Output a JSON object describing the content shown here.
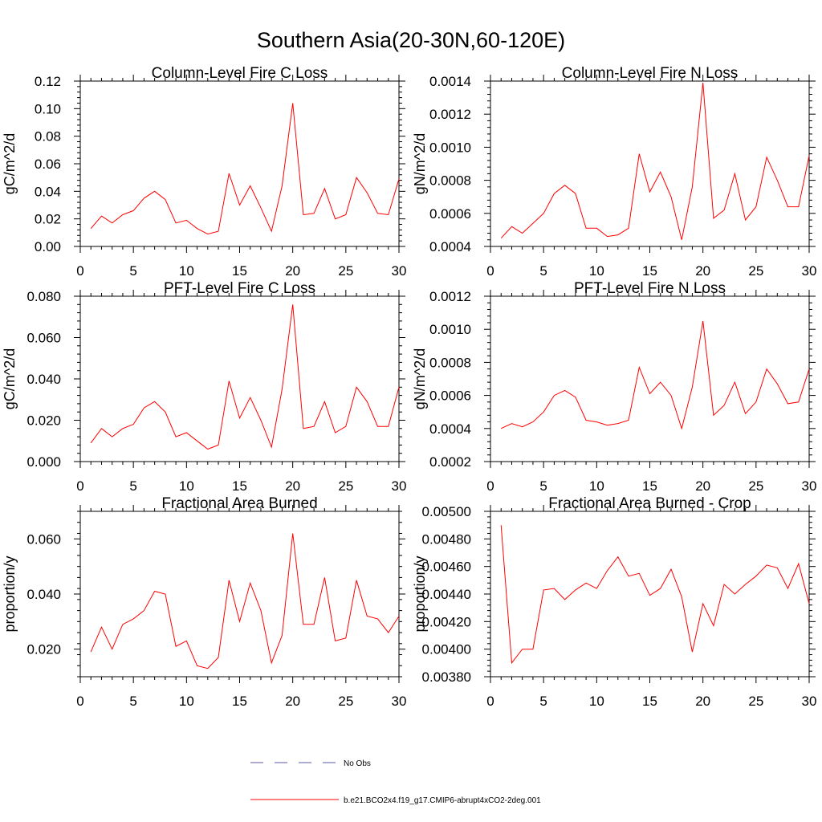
{
  "figure": {
    "title": "Southern Asia(20-30N,60-120E)",
    "colors": {
      "model": "#ff0000",
      "obs": "#5a5aa8",
      "axis": "#000000"
    }
  },
  "legend": {
    "entries": [
      {
        "label": "No Obs",
        "style": "dashed",
        "color": "#5a5aa8"
      },
      {
        "label": "b.e21.BCO2x4.f19_g17.CMIP6-abrupt4xCO2-2deg.001",
        "style": "solid",
        "color": "#ff0000"
      }
    ]
  },
  "chart_data": [
    {
      "type": "line",
      "title": "Column-Level Fire C Loss",
      "ylabel": "gC/m^2/d",
      "xlim": [
        0,
        30
      ],
      "ylim": [
        0.0,
        0.12
      ],
      "xticks": [
        0,
        5,
        10,
        15,
        20,
        25,
        30
      ],
      "yticks": [
        0.0,
        0.02,
        0.04,
        0.06,
        0.08,
        0.1,
        0.12
      ],
      "ytick_labels": [
        "0.00",
        "0.02",
        "0.04",
        "0.06",
        "0.08",
        "0.10",
        "0.12"
      ],
      "series": [
        {
          "name": "b.e21.BCO2x4.f19_g17.CMIP6-abrupt4xCO2-2deg.001",
          "x": [
            1,
            2,
            3,
            4,
            5,
            6,
            7,
            8,
            9,
            10,
            11,
            12,
            13,
            14,
            15,
            16,
            17,
            18,
            19,
            20,
            21,
            22,
            23,
            24,
            25,
            26,
            27,
            28,
            29,
            30
          ],
          "values": [
            0.013,
            0.022,
            0.017,
            0.023,
            0.026,
            0.035,
            0.04,
            0.034,
            0.017,
            0.019,
            0.013,
            0.009,
            0.011,
            0.053,
            0.03,
            0.044,
            0.028,
            0.011,
            0.044,
            0.104,
            0.023,
            0.024,
            0.042,
            0.02,
            0.023,
            0.05,
            0.039,
            0.024,
            0.023,
            0.049
          ]
        }
      ]
    },
    {
      "type": "line",
      "title": "Column-Level Fire N Loss",
      "ylabel": "gN/m^2/d",
      "xlim": [
        0,
        30
      ],
      "ylim": [
        0.0004,
        0.0014
      ],
      "xticks": [
        0,
        5,
        10,
        15,
        20,
        25,
        30
      ],
      "yticks": [
        0.0004,
        0.0006,
        0.0008,
        0.001,
        0.0012,
        0.0014
      ],
      "ytick_labels": [
        "0.0004",
        "0.0006",
        "0.0008",
        "0.0010",
        "0.0012",
        "0.0014"
      ],
      "series": [
        {
          "name": "b.e21.BCO2x4.f19_g17.CMIP6-abrupt4xCO2-2deg.001",
          "x": [
            1,
            2,
            3,
            4,
            5,
            6,
            7,
            8,
            9,
            10,
            11,
            12,
            13,
            14,
            15,
            16,
            17,
            18,
            19,
            20,
            21,
            22,
            23,
            24,
            25,
            26,
            27,
            28,
            29,
            30
          ],
          "values": [
            0.00045,
            0.00052,
            0.00048,
            0.00054,
            0.0006,
            0.00072,
            0.00077,
            0.00072,
            0.00051,
            0.00051,
            0.00046,
            0.00047,
            0.00051,
            0.00096,
            0.00073,
            0.00085,
            0.0007,
            0.00044,
            0.00076,
            0.00139,
            0.00057,
            0.00062,
            0.00084,
            0.00056,
            0.00064,
            0.00094,
            0.0008,
            0.00064,
            0.00064,
            0.00095
          ]
        }
      ]
    },
    {
      "type": "line",
      "title": "PFT-Level Fire C Loss",
      "ylabel": "gC/m^2/d",
      "xlim": [
        0,
        30
      ],
      "ylim": [
        0.0,
        0.08
      ],
      "xticks": [
        0,
        5,
        10,
        15,
        20,
        25,
        30
      ],
      "yticks": [
        0.0,
        0.02,
        0.04,
        0.06,
        0.08
      ],
      "ytick_labels": [
        "0.000",
        "0.020",
        "0.040",
        "0.060",
        "0.080"
      ],
      "series": [
        {
          "name": "b.e21.BCO2x4.f19_g17.CMIP6-abrupt4xCO2-2deg.001",
          "x": [
            1,
            2,
            3,
            4,
            5,
            6,
            7,
            8,
            9,
            10,
            11,
            12,
            13,
            14,
            15,
            16,
            17,
            18,
            19,
            20,
            21,
            22,
            23,
            24,
            25,
            26,
            27,
            28,
            29,
            30
          ],
          "values": [
            0.009,
            0.016,
            0.012,
            0.016,
            0.018,
            0.026,
            0.029,
            0.024,
            0.012,
            0.014,
            0.01,
            0.006,
            0.008,
            0.039,
            0.021,
            0.031,
            0.02,
            0.007,
            0.035,
            0.076,
            0.016,
            0.017,
            0.029,
            0.014,
            0.017,
            0.036,
            0.029,
            0.017,
            0.017,
            0.036
          ]
        }
      ]
    },
    {
      "type": "line",
      "title": "PFT-Level Fire N Loss",
      "ylabel": "gN/m^2/d",
      "xlim": [
        0,
        30
      ],
      "ylim": [
        0.0002,
        0.0012
      ],
      "xticks": [
        0,
        5,
        10,
        15,
        20,
        25,
        30
      ],
      "yticks": [
        0.0002,
        0.0004,
        0.0006,
        0.0008,
        0.001,
        0.0012
      ],
      "ytick_labels": [
        "0.0002",
        "0.0004",
        "0.0006",
        "0.0008",
        "0.0010",
        "0.0012"
      ],
      "series": [
        {
          "name": "b.e21.BCO2x4.f19_g17.CMIP6-abrupt4xCO2-2deg.001",
          "x": [
            1,
            2,
            3,
            4,
            5,
            6,
            7,
            8,
            9,
            10,
            11,
            12,
            13,
            14,
            15,
            16,
            17,
            18,
            19,
            20,
            21,
            22,
            23,
            24,
            25,
            26,
            27,
            28,
            29,
            30
          ],
          "values": [
            0.0004,
            0.00043,
            0.00041,
            0.00044,
            0.0005,
            0.0006,
            0.00063,
            0.00059,
            0.00045,
            0.00044,
            0.00042,
            0.00043,
            0.00045,
            0.00077,
            0.00061,
            0.00068,
            0.0006,
            0.0004,
            0.00065,
            0.00105,
            0.00048,
            0.00054,
            0.00068,
            0.00049,
            0.00056,
            0.00076,
            0.00067,
            0.00055,
            0.00056,
            0.00076
          ]
        }
      ]
    },
    {
      "type": "line",
      "title": "Fractional Area Burned",
      "ylabel": "proportion/y",
      "xlim": [
        0,
        30
      ],
      "ylim": [
        0.01,
        0.07
      ],
      "xticks": [
        0,
        5,
        10,
        15,
        20,
        25,
        30
      ],
      "yticks": [
        0.02,
        0.04,
        0.06
      ],
      "ytick_labels": [
        "0.020",
        "0.040",
        "0.060"
      ],
      "series": [
        {
          "name": "b.e21.BCO2x4.f19_g17.CMIP6-abrupt4xCO2-2deg.001",
          "x": [
            1,
            2,
            3,
            4,
            5,
            6,
            7,
            8,
            9,
            10,
            11,
            12,
            13,
            14,
            15,
            16,
            17,
            18,
            19,
            20,
            21,
            22,
            23,
            24,
            25,
            26,
            27,
            28,
            29,
            30
          ],
          "values": [
            0.019,
            0.028,
            0.02,
            0.029,
            0.031,
            0.034,
            0.041,
            0.04,
            0.021,
            0.023,
            0.014,
            0.013,
            0.017,
            0.045,
            0.03,
            0.044,
            0.034,
            0.015,
            0.025,
            0.062,
            0.029,
            0.029,
            0.046,
            0.023,
            0.024,
            0.045,
            0.032,
            0.031,
            0.026,
            0.032
          ]
        }
      ]
    },
    {
      "type": "line",
      "title": "Fractional Area Burned - Crop",
      "ylabel": "proportion/y",
      "xlim": [
        0,
        30
      ],
      "ylim": [
        0.0038,
        0.005
      ],
      "xticks": [
        0,
        5,
        10,
        15,
        20,
        25,
        30
      ],
      "yticks": [
        0.0038,
        0.004,
        0.0042,
        0.0044,
        0.0046,
        0.0048,
        0.005
      ],
      "ytick_labels": [
        "0.00380",
        "0.00400",
        "0.00420",
        "0.00440",
        "0.00460",
        "0.00480",
        "0.00500"
      ],
      "series": [
        {
          "name": "b.e21.BCO2x4.f19_g17.CMIP6-abrupt4xCO2-2deg.001",
          "x": [
            1,
            2,
            3,
            4,
            5,
            6,
            7,
            8,
            9,
            10,
            11,
            12,
            13,
            14,
            15,
            16,
            17,
            18,
            19,
            20,
            21,
            22,
            23,
            24,
            25,
            26,
            27,
            28,
            29,
            30
          ],
          "values": [
            0.0049,
            0.0039,
            0.004,
            0.004,
            0.00443,
            0.00444,
            0.00436,
            0.00443,
            0.00448,
            0.00444,
            0.00457,
            0.00467,
            0.00453,
            0.00455,
            0.00439,
            0.00444,
            0.00458,
            0.00438,
            0.00398,
            0.00433,
            0.00417,
            0.00447,
            0.0044,
            0.00447,
            0.00453,
            0.00461,
            0.00459,
            0.00444,
            0.00462,
            0.00433
          ]
        }
      ]
    }
  ]
}
